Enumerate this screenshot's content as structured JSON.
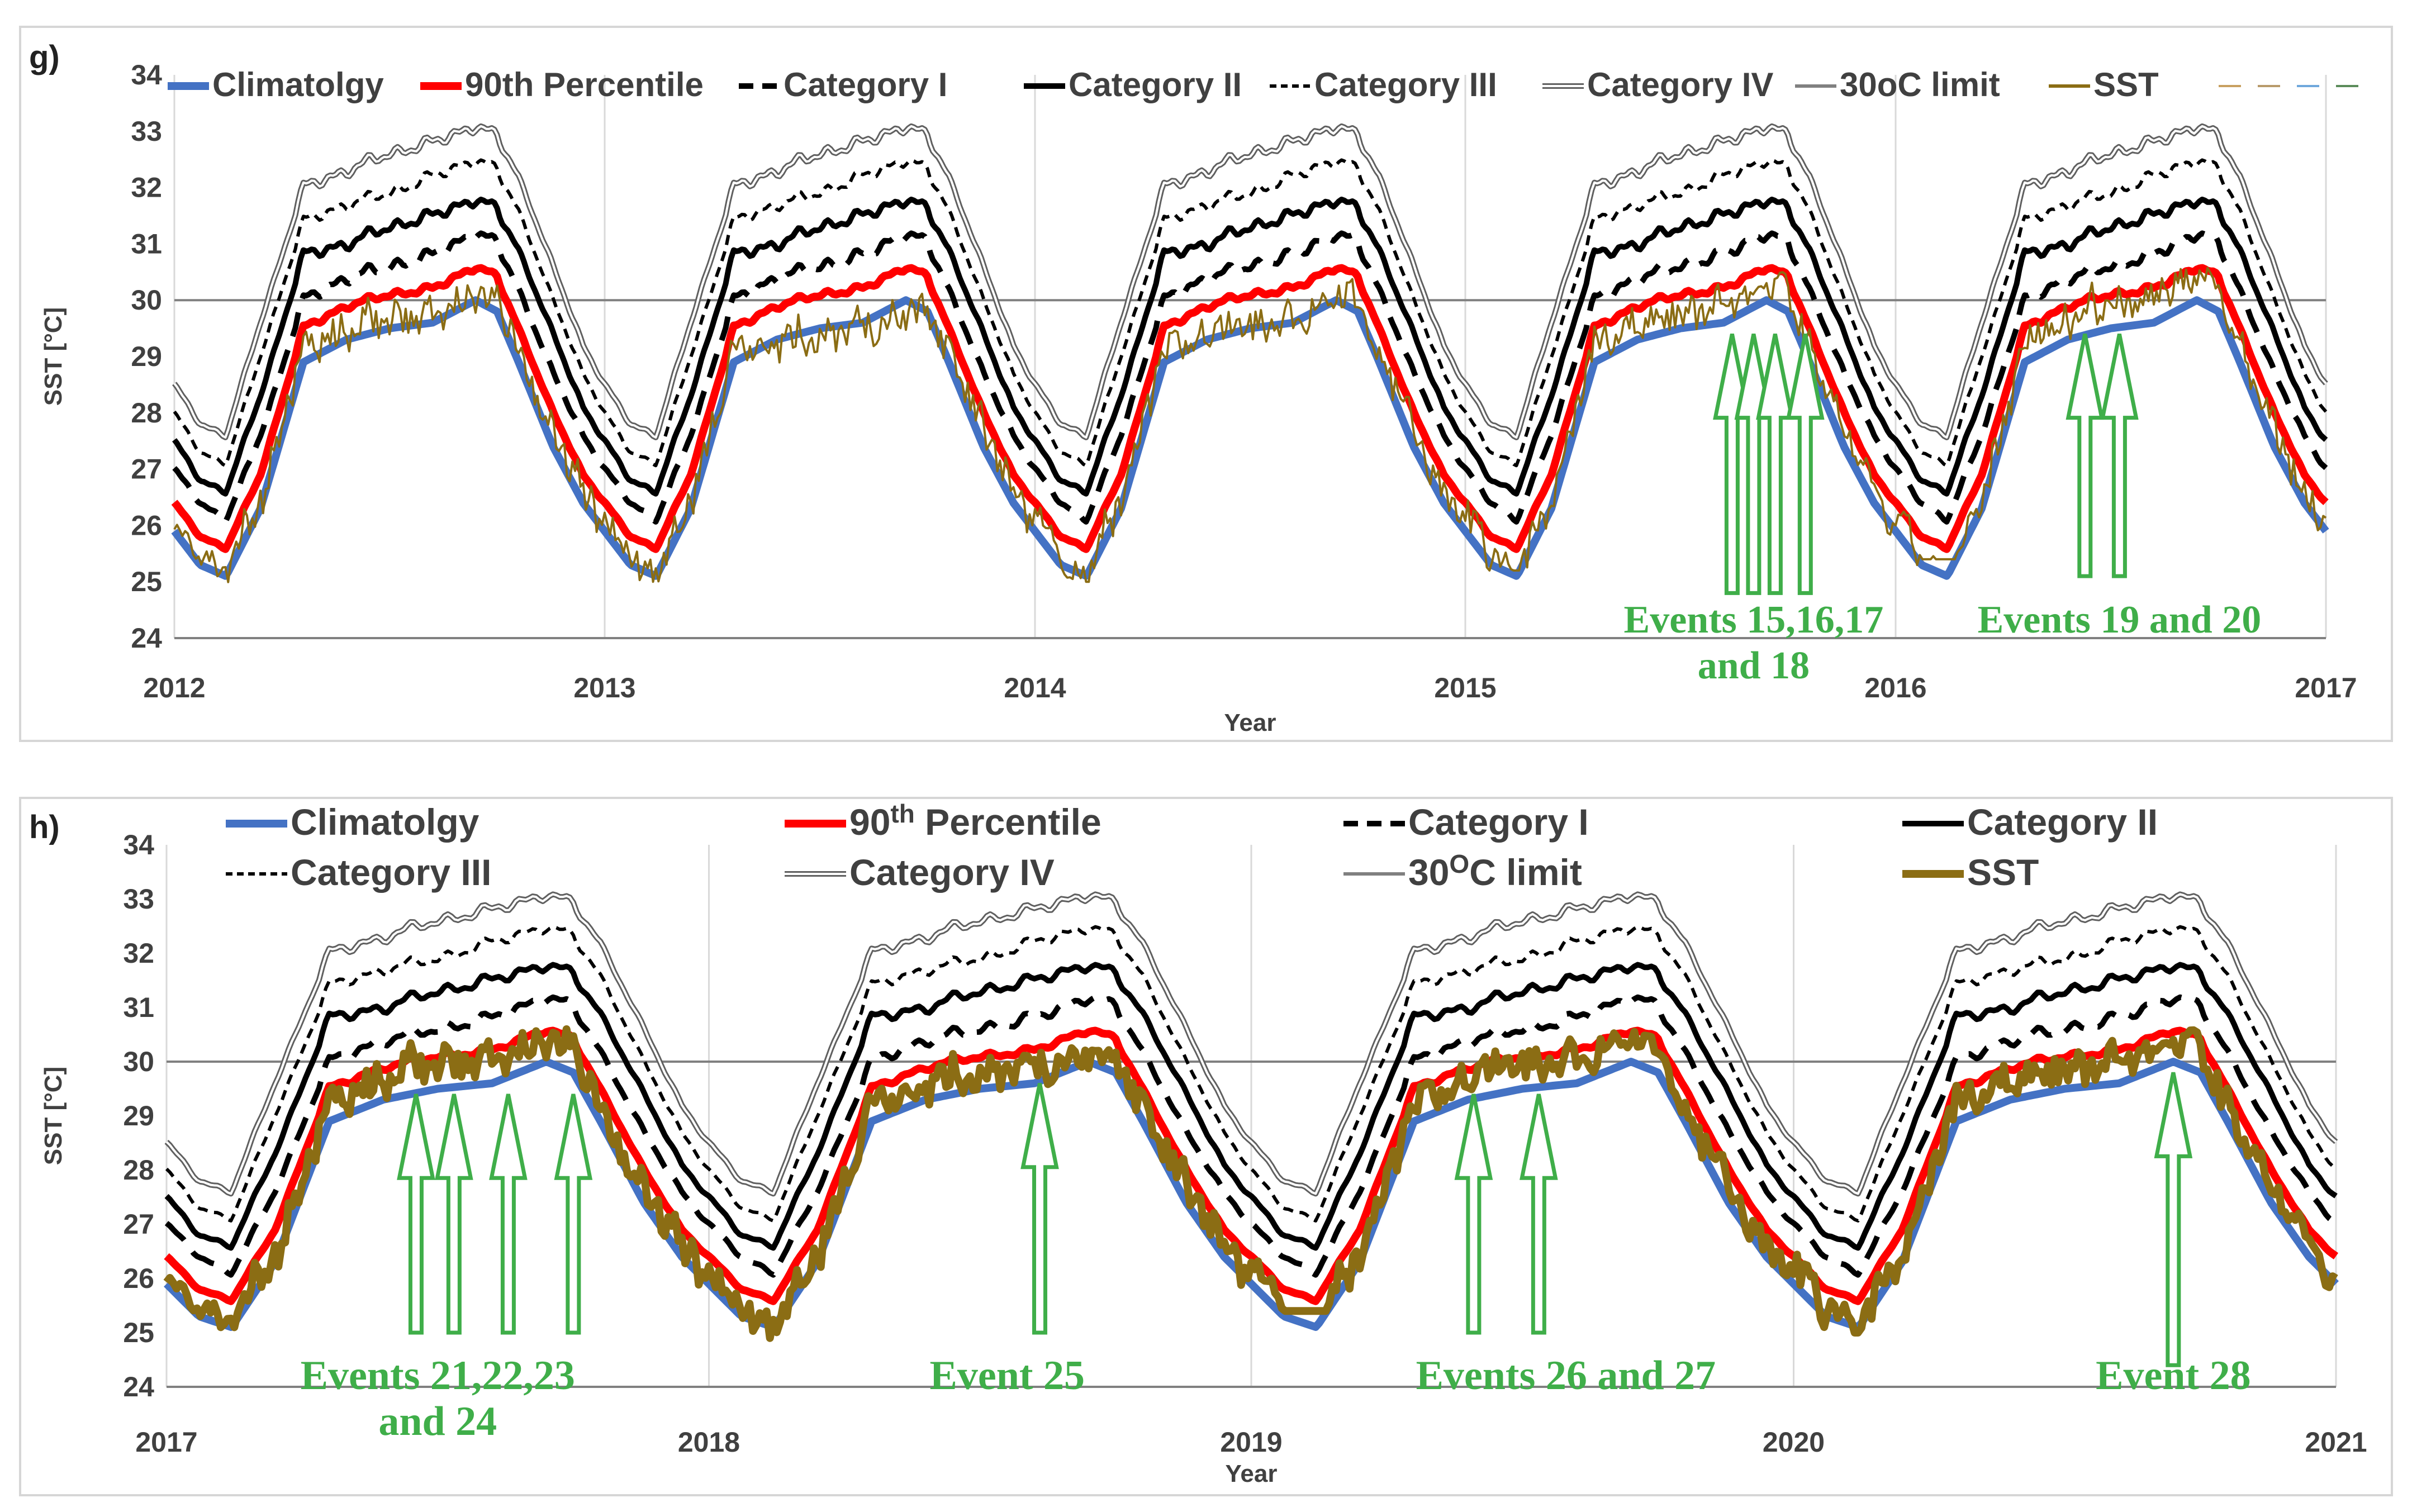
{
  "chart_data": [
    {
      "panel_label": "g)",
      "type": "line",
      "ylabel": "SST [°C]",
      "xlabel": "Year",
      "ylim": [
        24,
        34
      ],
      "yticks": [
        24,
        25,
        26,
        27,
        28,
        29,
        30,
        31,
        32,
        33,
        34
      ],
      "xlim": [
        2012,
        2017
      ],
      "xticks": [
        "2012",
        "2013",
        "2014",
        "2015",
        "2016",
        "2017"
      ],
      "threshold": 30,
      "series": [
        {
          "name": "Climatolgy",
          "color": "#4472c4",
          "style": "solid-thick",
          "profile": "clim"
        },
        {
          "name": "90th Percentile",
          "color": "#ff0000",
          "style": "solid-thick",
          "profile": "p90"
        },
        {
          "name": "Category I",
          "color": "#000000",
          "style": "dash-thick",
          "profile": "cat1"
        },
        {
          "name": "Category II",
          "color": "#000000",
          "style": "solid-medium",
          "profile": "cat2"
        },
        {
          "name": "Category III",
          "color": "#000000",
          "style": "dash-thin",
          "profile": "cat3"
        },
        {
          "name": "Category IV",
          "color": "#606060",
          "style": "double",
          "profile": "cat4"
        },
        {
          "name": "30oC limit",
          "color": "#808080",
          "style": "solid-thin",
          "profile": "limit"
        },
        {
          "name": "SST",
          "color": "#8b6d14",
          "style": "solid-thin",
          "profile": "sst"
        }
      ],
      "seasonal_profile": {
        "day_fraction": [
          0.0,
          0.06,
          0.12,
          0.2,
          0.3,
          0.4,
          0.5,
          0.6,
          0.7,
          0.75,
          0.8,
          0.88,
          0.95,
          1.0
        ],
        "clim": [
          25.9,
          25.3,
          25.1,
          26.3,
          28.9,
          29.3,
          29.5,
          29.6,
          30.0,
          29.8,
          28.9,
          27.4,
          26.4,
          25.9
        ],
        "p90": [
          26.4,
          25.8,
          25.6,
          26.9,
          29.5,
          29.9,
          30.1,
          30.2,
          30.6,
          30.4,
          29.5,
          28.0,
          26.9,
          26.4
        ],
        "cat1": [
          27.0,
          26.4,
          26.1,
          27.6,
          30.0,
          30.4,
          30.6,
          30.8,
          31.2,
          31.0,
          30.2,
          28.7,
          27.6,
          27.0
        ],
        "cat2": [
          27.5,
          26.8,
          26.6,
          28.3,
          30.8,
          31.0,
          31.3,
          31.5,
          31.8,
          31.6,
          30.9,
          29.4,
          28.1,
          27.5
        ],
        "cat3": [
          28.0,
          27.3,
          27.1,
          29.0,
          31.4,
          31.7,
          31.9,
          32.2,
          32.5,
          32.3,
          31.6,
          30.0,
          28.7,
          28.0
        ],
        "cat4": [
          28.5,
          27.8,
          27.6,
          29.6,
          32.0,
          32.3,
          32.6,
          32.8,
          33.1,
          32.9,
          32.2,
          30.6,
          29.2,
          28.5
        ]
      },
      "sst_by_year": [
        {
          "year": 2012,
          "min": 24.6,
          "summer_mean": 29.8,
          "max": 30.3
        },
        {
          "year": 2013,
          "min": 25.0,
          "summer_mean": 29.5,
          "max": 30.2
        },
        {
          "year": 2014,
          "min": 25.0,
          "summer_mean": 29.7,
          "max": 30.4
        },
        {
          "year": 2015,
          "min": 25.2,
          "summer_mean": 29.9,
          "max": 31.2
        },
        {
          "year": 2016,
          "min": 25.4,
          "summer_mean": 30.1,
          "max": 30.6
        }
      ],
      "annotations": [
        {
          "lines": [
            "Events 15,16,17",
            "and 18"
          ],
          "arrow_years": [
            2015.62,
            2015.67,
            2015.72,
            2015.79
          ],
          "arrow_top": 29.4,
          "arrow_bottom": 24.8,
          "text_x": 2015.67
        },
        {
          "lines": [
            "Events 19 and 20"
          ],
          "arrow_years": [
            2016.44,
            2016.52
          ],
          "arrow_top": 29.4,
          "arrow_bottom": 25.1,
          "text_x": 2016.52
        }
      ]
    },
    {
      "panel_label": "h)",
      "type": "line",
      "ylabel": "SST [°C]",
      "xlabel": "Year",
      "ylim": [
        24,
        34
      ],
      "yticks": [
        24,
        25,
        26,
        27,
        28,
        29,
        30,
        31,
        32,
        33,
        34
      ],
      "xlim": [
        2017,
        2021
      ],
      "xticks": [
        "2017",
        "2018",
        "2019",
        "2020",
        "2021"
      ],
      "threshold": 30,
      "series": [
        {
          "name": "Climatolgy",
          "color": "#4472c4",
          "style": "solid-thick",
          "profile": "clim"
        },
        {
          "name": "90th Percentile",
          "name_base": "90",
          "name_sup": "th",
          "name_rest": " Percentile",
          "color": "#ff0000",
          "style": "solid-thick",
          "profile": "p90"
        },
        {
          "name": "Category I",
          "color": "#000000",
          "style": "dash-thick",
          "profile": "cat1"
        },
        {
          "name": "Category II",
          "color": "#000000",
          "style": "solid-medium",
          "profile": "cat2"
        },
        {
          "name": "Category III",
          "color": "#000000",
          "style": "dash-thin",
          "profile": "cat3"
        },
        {
          "name": "Category IV",
          "color": "#606060",
          "style": "double",
          "profile": "cat4"
        },
        {
          "name": "30OC limit",
          "name_base": "30",
          "name_sup": "O",
          "name_rest": "C limit",
          "color": "#808080",
          "style": "solid-thin",
          "profile": "limit"
        },
        {
          "name": "SST",
          "color": "#8b6d14",
          "style": "solid-heavy",
          "profile": "sst"
        }
      ],
      "sst_by_year": [
        {
          "year": 2017,
          "min": 25.1,
          "summer_mean": 30.1,
          "max": 30.6
        },
        {
          "year": 2018,
          "min": 24.9,
          "summer_mean": 29.9,
          "max": 30.3
        },
        {
          "year": 2019,
          "min": 25.4,
          "summer_mean": 30.1,
          "max": 30.6
        },
        {
          "year": 2020,
          "min": 25.0,
          "summer_mean": 30.0,
          "max": 31.6
        }
      ],
      "annotations": [
        {
          "lines": [
            "Events 21,22,23",
            "and 24"
          ],
          "arrow_years": [
            2017.46,
            2017.53,
            2017.63,
            2017.75
          ],
          "arrow_top": 29.4,
          "arrow_bottom": 25.0,
          "text_x": 2017.5
        },
        {
          "lines": [
            "Event 25"
          ],
          "arrow_years": [
            2018.61
          ],
          "arrow_top": 29.6,
          "arrow_bottom": 25.0,
          "text_x": 2018.55
        },
        {
          "lines": [
            "Events 26 and 27"
          ],
          "arrow_years": [
            2019.41,
            2019.53
          ],
          "arrow_top": 29.4,
          "arrow_bottom": 25.0,
          "text_x": 2019.58
        },
        {
          "lines": [
            "Event 28"
          ],
          "arrow_years": [
            2020.7
          ],
          "arrow_top": 29.8,
          "arrow_bottom": 24.4,
          "text_x": 2020.7
        }
      ]
    }
  ]
}
